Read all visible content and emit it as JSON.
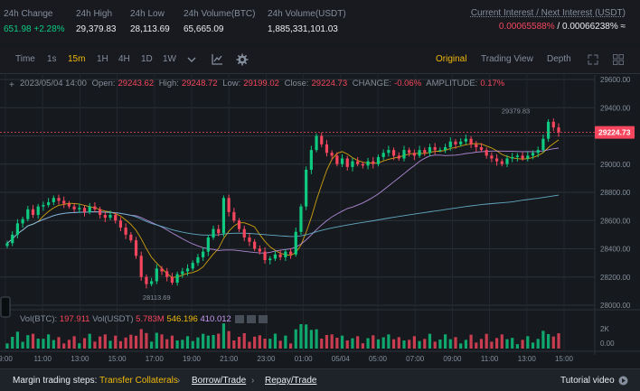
{
  "stats": [
    {
      "label": "24h Change",
      "value": "651.98 +2.28%",
      "green": true
    },
    {
      "label": "24h High",
      "value": "29,379.83"
    },
    {
      "label": "24h Low",
      "value": "28,113.69"
    },
    {
      "label": "24h Volume(BTC)",
      "value": "65,665.09"
    },
    {
      "label": "24h Volume(USDT)",
      "value": "1,885,331,101.03"
    }
  ],
  "interest": {
    "label": "Current Interest / Next Interest (USDT)",
    "current": "0.00065588%",
    "sep": " / ",
    "next": "0.00066238%",
    "approx": "≈"
  },
  "toolbar": {
    "time": "Time",
    "intervals": [
      "1s",
      "15m",
      "1H",
      "4H",
      "1D",
      "1W"
    ],
    "active_interval": "15m",
    "views": [
      "Original",
      "Trading View",
      "Depth"
    ],
    "active_view": "Original"
  },
  "ohlc": {
    "date": "2023/05/04 14:00",
    "open_label": "Open:",
    "open": "29243.62",
    "high_label": "High:",
    "high": "29248.72",
    "low_label": "Low:",
    "low": "29199.02",
    "close_label": "Close:",
    "close": "29224.73",
    "change_label": "CHANGE:",
    "change": "-0.06%",
    "amp_label": "AMPLITUDE:",
    "amp": "0.17%"
  },
  "volume": {
    "btc_label": "Vol(BTC):",
    "btc": "197.911",
    "usdt_label": "Vol(USDT)",
    "usdt": "5.783M",
    "ma1": "546.196",
    "ma2": "410.012"
  },
  "price_axis": [
    "29600.00",
    "29400.00",
    "29200.00",
    "29000.00",
    "28800.00",
    "28600.00",
    "28400.00",
    "28200.00",
    "28000.00"
  ],
  "current_price": "29224.73",
  "high_marker": "29379.83",
  "low_marker": "28113.69",
  "vol_axis": [
    "2K",
    "0.00"
  ],
  "time_axis": [
    "9:00",
    "11:00",
    "13:00",
    "15:00",
    "17:00",
    "19:00",
    "21:00",
    "23:00",
    "01:00",
    "05/04",
    "05:00",
    "07:00",
    "09:00",
    "11:00",
    "13:00",
    "15:00"
  ],
  "bottom": {
    "label": "Margin trading steps:",
    "step1": "Transfer Collaterals",
    "step2": "Borrow/Trade",
    "step3": "Repay/Trade",
    "tutorial": "Tutorial video"
  },
  "colors": {
    "up": "#0ecb81",
    "down": "#f6465d",
    "accent": "#f0b90b"
  },
  "chart_data": {
    "type": "candlestick",
    "interval": "15m",
    "close": [
      28440,
      28500,
      28580,
      28610,
      28680,
      28640,
      28700,
      28710,
      28730,
      28760,
      28740,
      28720,
      28700,
      28680,
      28690,
      28660,
      28700,
      28680,
      28640,
      28620,
      28640,
      28600,
      28550,
      28500,
      28460,
      28350,
      28200,
      28150,
      28170,
      28260,
      28240,
      28200,
      28160,
      28220,
      28240,
      28260,
      28300,
      28340,
      28380,
      28480,
      28540,
      28510,
      28760,
      28660,
      28600,
      28540,
      28480,
      28450,
      28400,
      28380,
      28320,
      28330,
      28360,
      28340,
      28380,
      28360,
      28520,
      28700,
      28960,
      29100,
      29200,
      29140,
      29080,
      29060,
      29000,
      29040,
      28980,
      29020,
      29000,
      28990,
      29020,
      29000,
      29050,
      29080,
      29100,
      29060,
      29040,
      29100,
      29080,
      29060,
      29100,
      29080,
      29120,
      29100,
      29100,
      29120,
      29160,
      29140,
      29160,
      29180,
      29140,
      29120,
      29100,
      29060,
      29040,
      29020,
      29000,
      29040,
      29050,
      29060,
      29040,
      29060,
      29080,
      29100,
      29180,
      29300,
      29260,
      29224.73
    ]
  }
}
